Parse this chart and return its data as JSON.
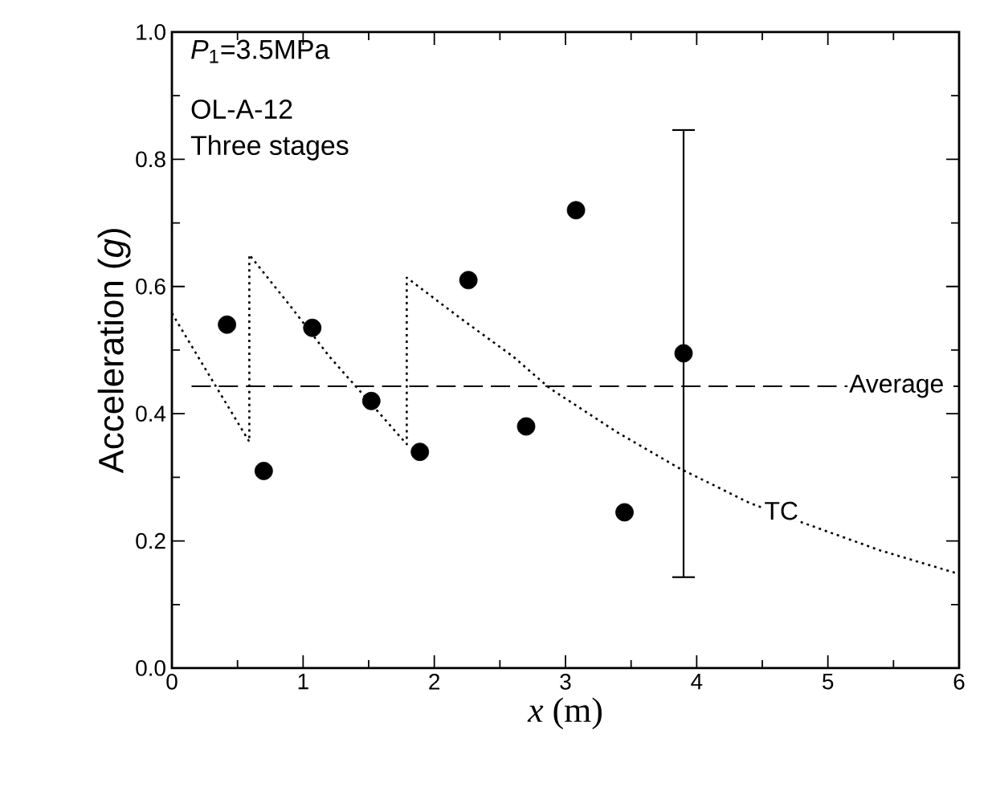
{
  "chart_data": {
    "type": "scatter",
    "xlabel": "*x* (m)",
    "ylabel": "Acceleration (*g*)",
    "annotations": [
      "*P*$_{1}$=3.5MPa",
      "OL-A-12",
      "Three stages"
    ],
    "xlim": [
      0,
      6
    ],
    "xticks": [
      0,
      1,
      2,
      3,
      4,
      5,
      6
    ],
    "ylim": [
      0,
      1.0
    ],
    "yticks": [
      {
        "value": 0,
        "label": "0.0"
      },
      {
        "value": 0.2,
        "label": "0.2"
      },
      {
        "value": 0.4,
        "label": "0.4"
      },
      {
        "value": 0.6,
        "label": "0.6"
      },
      {
        "value": 0.8,
        "label": "0.8"
      },
      {
        "value": 1.0,
        "label": "1.0"
      }
    ],
    "grid": false,
    "series": [
      {
        "marker": "circle",
        "color": "#000000",
        "x": [
          0.42,
          0.7,
          1.07,
          1.52,
          1.89,
          2.26,
          2.7,
          3.08,
          3.45,
          3.9
        ],
        "values": [
          0.54,
          0.31,
          0.535,
          0.42,
          0.34,
          0.61,
          0.38,
          0.72,
          0.245,
          0.495
        ],
        "errors": [
          null,
          null,
          null,
          null,
          null,
          null,
          null,
          null,
          null,
          [
            0.143,
            0.846
          ]
        ]
      },
      {
        "type": "line",
        "name": "TC",
        "marker": "none",
        "color": "#000000",
        "line_style": "dotted",
        "x": [
          0,
          0.3,
          0.59,
          0.59,
          0.9,
          1.2,
          1.5,
          1.79,
          1.79,
          2.2,
          2.6,
          2.88,
          3.4,
          3.87,
          4.4,
          4.79,
          5.4,
          6
        ],
        "values": [
          0.558,
          0.455,
          0.356,
          0.65,
          0.57,
          0.49,
          0.42,
          0.352,
          0.614,
          0.55,
          0.49,
          0.44,
          0.37,
          0.314,
          0.26,
          0.23,
          0.185,
          0.148
        ]
      }
    ],
    "ref_lines": [
      {
        "axis": "y",
        "value": 0.443,
        "label": "Average",
        "line_style": "dashed"
      }
    ]
  }
}
